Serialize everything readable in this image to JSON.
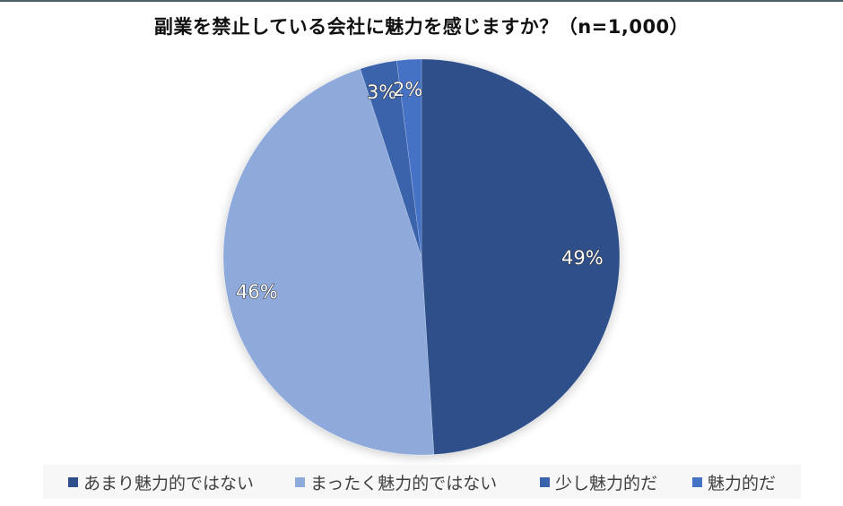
{
  "chart": {
    "title": "副業を禁止している会社に魅力を感じますか？（n=1,000）"
  },
  "legend": {
    "items": [
      {
        "label": "あまり魅力的ではない",
        "color": "#2e4f8a"
      },
      {
        "label": "まったく魅力的ではない",
        "color": "#8eaadb"
      },
      {
        "label": "少し魅力的だ",
        "color": "#3a63ac"
      },
      {
        "label": "魅力的だ",
        "color": "#4472c4"
      }
    ]
  },
  "labels": {
    "slice0": "49%",
    "slice1": "46%",
    "slice2": "3%",
    "slice3": "2%"
  },
  "chart_data": {
    "type": "pie",
    "title": "副業を禁止している会社に魅力を感じますか？（n=1,000）",
    "categories": [
      "あまり魅力的ではない",
      "まったく魅力的ではない",
      "少し魅力的だ",
      "魅力的だ"
    ],
    "values": [
      49,
      46,
      3,
      2
    ],
    "value_labels": [
      "49%",
      "46%",
      "3%",
      "2%"
    ],
    "colors": [
      "#2e4f8a",
      "#8eaadb",
      "#3a63ac",
      "#4472c4"
    ],
    "start_angle_deg": 0,
    "direction": "clockwise",
    "sample_size": "n=1,000",
    "legend_position": "bottom",
    "data_labels": "inside"
  }
}
